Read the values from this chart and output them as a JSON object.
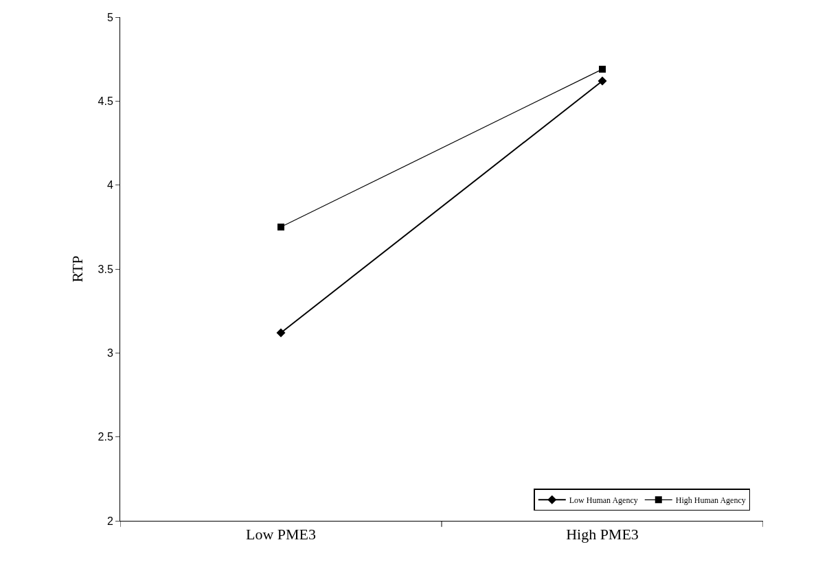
{
  "chart_data": {
    "type": "line",
    "ylabel": "RTP",
    "categories": [
      "Low PME3",
      "High PME3"
    ],
    "series": [
      {
        "name": "Low Human Agency",
        "color": "#000000",
        "values": [
          3.12,
          4.62
        ],
        "marker": "diamond"
      },
      {
        "name": "High Human Agency",
        "color": "#000000",
        "values": [
          3.75,
          4.69
        ],
        "marker": "square"
      }
    ],
    "ylim": [
      2,
      5
    ],
    "yticks": [
      2,
      2.5,
      3,
      3.5,
      4,
      4.5,
      5
    ],
    "legend": "bottom right",
    "line_style": "solid"
  }
}
